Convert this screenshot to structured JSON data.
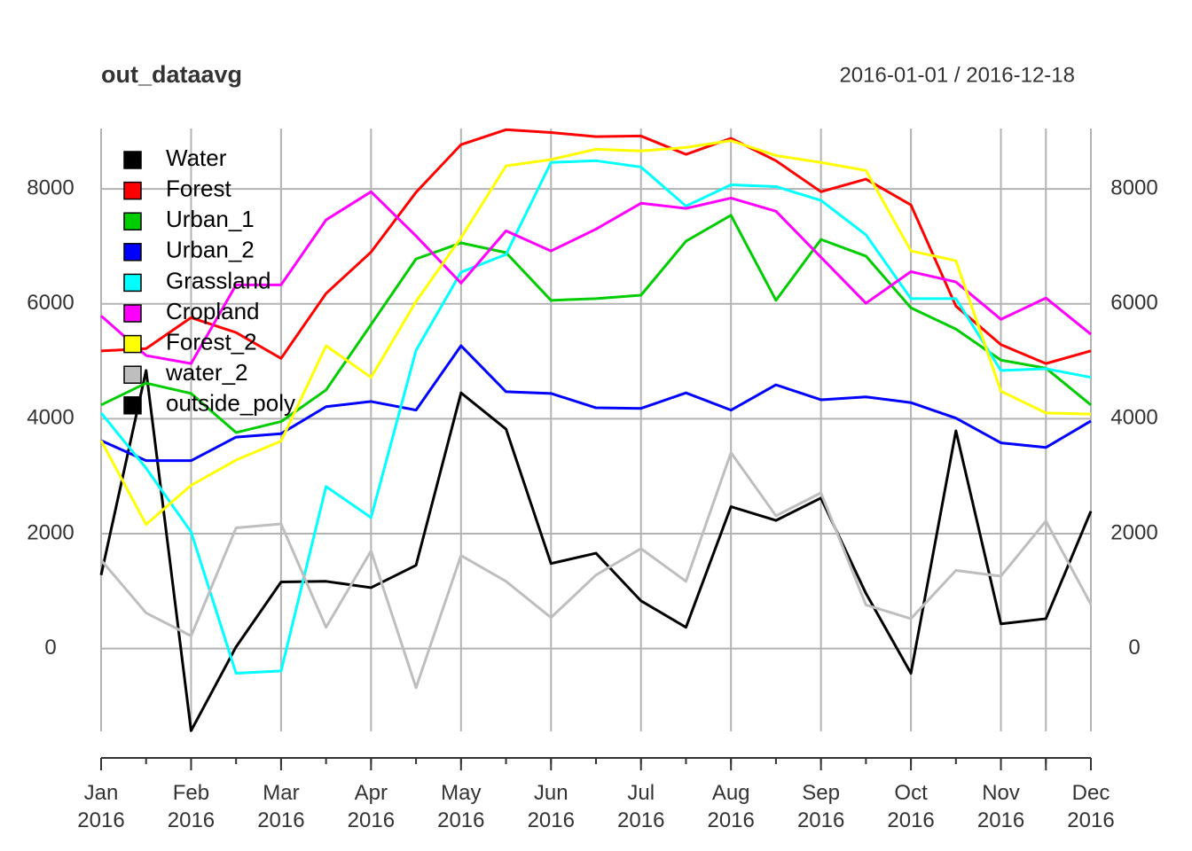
{
  "chart_data": {
    "type": "line",
    "title": "out_dataavg",
    "subtitle": "2016-01-01 / 2016-12-18",
    "x": [
      "2016-01-01",
      "2016-01-17",
      "2016-02-02",
      "2016-02-18",
      "2016-03-05",
      "2016-03-21",
      "2016-04-06",
      "2016-04-22",
      "2016-05-08",
      "2016-05-24",
      "2016-06-09",
      "2016-06-25",
      "2016-07-11",
      "2016-07-27",
      "2016-08-12",
      "2016-08-28",
      "2016-09-13",
      "2016-09-29",
      "2016-10-15",
      "2016-10-31",
      "2016-11-16",
      "2016-12-02",
      "2016-12-18"
    ],
    "xlim": [
      "2016-01-01",
      "2016-12-18"
    ],
    "xticks": [
      {
        "value": "2016-01-01",
        "label": "Jan 2016"
      },
      {
        "value": "2016-02-02",
        "label": "Feb 2016"
      },
      {
        "value": "2016-03-05",
        "label": "Mar 2016"
      },
      {
        "value": "2016-04-06",
        "label": "Apr 2016"
      },
      {
        "value": "2016-05-08",
        "label": "May 2016"
      },
      {
        "value": "2016-06-09",
        "label": "Jun 2016"
      },
      {
        "value": "2016-07-11",
        "label": "Jul 2016"
      },
      {
        "value": "2016-08-12",
        "label": "Aug 2016"
      },
      {
        "value": "2016-09-13",
        "label": "Sep 2016"
      },
      {
        "value": "2016-10-15",
        "label": "Oct 2016"
      },
      {
        "value": "2016-11-16",
        "label": "Nov 2016"
      },
      {
        "value": "2016-12-02",
        "label": null
      },
      {
        "value": "2016-12-18",
        "label": "Dec 2016"
      }
    ],
    "ylim": [
      -1440,
      9050
    ],
    "yticks": [
      0,
      2000,
      4000,
      6000,
      8000
    ],
    "grid": true,
    "legend": "top-left",
    "series": [
      {
        "name": "Water",
        "color": "#000000",
        "values": [
          1280,
          4840,
          -1430,
          30,
          1160,
          1170,
          1060,
          1450,
          4450,
          3820,
          1480,
          1660,
          830,
          370,
          2470,
          2230,
          2620,
          960,
          -430,
          3790,
          430,
          520,
          2390
        ]
      },
      {
        "name": "Forest",
        "color": "#ff0000",
        "values": [
          5180,
          5220,
          5760,
          5500,
          5050,
          6180,
          6900,
          7940,
          8770,
          9030,
          8980,
          8910,
          8920,
          8600,
          8880,
          8490,
          7950,
          8170,
          7720,
          5960,
          5290,
          4960,
          5180
        ]
      },
      {
        "name": "Urban_1",
        "color": "#00cd00",
        "values": [
          4240,
          4620,
          4440,
          3760,
          3950,
          4500,
          5640,
          6780,
          7060,
          6890,
          6060,
          6090,
          6150,
          7090,
          7540,
          6060,
          7120,
          6830,
          5930,
          5560,
          5020,
          4880,
          4240
        ]
      },
      {
        "name": "Urban_2",
        "color": "#0000ff",
        "values": [
          3620,
          3270,
          3270,
          3680,
          3740,
          4210,
          4300,
          4150,
          5270,
          4470,
          4440,
          4190,
          4180,
          4450,
          4150,
          4590,
          4330,
          4380,
          4280,
          4010,
          3580,
          3500,
          3960
        ]
      },
      {
        "name": "Grassland",
        "color": "#00ffff",
        "values": [
          4100,
          3140,
          2030,
          -430,
          -390,
          2820,
          2280,
          5190,
          6550,
          6860,
          8460,
          8490,
          8380,
          7700,
          8070,
          8040,
          7800,
          7200,
          6090,
          6090,
          4840,
          4870,
          4720
        ]
      },
      {
        "name": "Cropland",
        "color": "#ff00ff",
        "values": [
          5790,
          5100,
          4960,
          6330,
          6330,
          7460,
          7950,
          7180,
          6360,
          7270,
          6920,
          7300,
          7750,
          7660,
          7840,
          7610,
          6810,
          6010,
          6560,
          6380,
          5730,
          6100,
          5470
        ]
      },
      {
        "name": "Forest_2",
        "color": "#ffff00",
        "values": [
          3620,
          2160,
          2840,
          3280,
          3610,
          5270,
          4720,
          6040,
          7150,
          8400,
          8510,
          8690,
          8660,
          8720,
          8840,
          8580,
          8460,
          8320,
          6920,
          6750,
          4480,
          4100,
          4080
        ]
      },
      {
        "name": "water_2",
        "color": "#bebebe",
        "values": [
          1540,
          620,
          220,
          2100,
          2170,
          370,
          1700,
          -680,
          1620,
          1170,
          540,
          1280,
          1740,
          1170,
          3410,
          2310,
          2710,
          760,
          520,
          1360,
          1260,
          2220,
          770
        ]
      },
      {
        "name": "outside_poly",
        "color": "#000000",
        "values": [
          null,
          null,
          null,
          null,
          null,
          null,
          null,
          null,
          null,
          null,
          null,
          null,
          null,
          null,
          null,
          null,
          null,
          null,
          null,
          null,
          null,
          null,
          null
        ]
      }
    ]
  }
}
